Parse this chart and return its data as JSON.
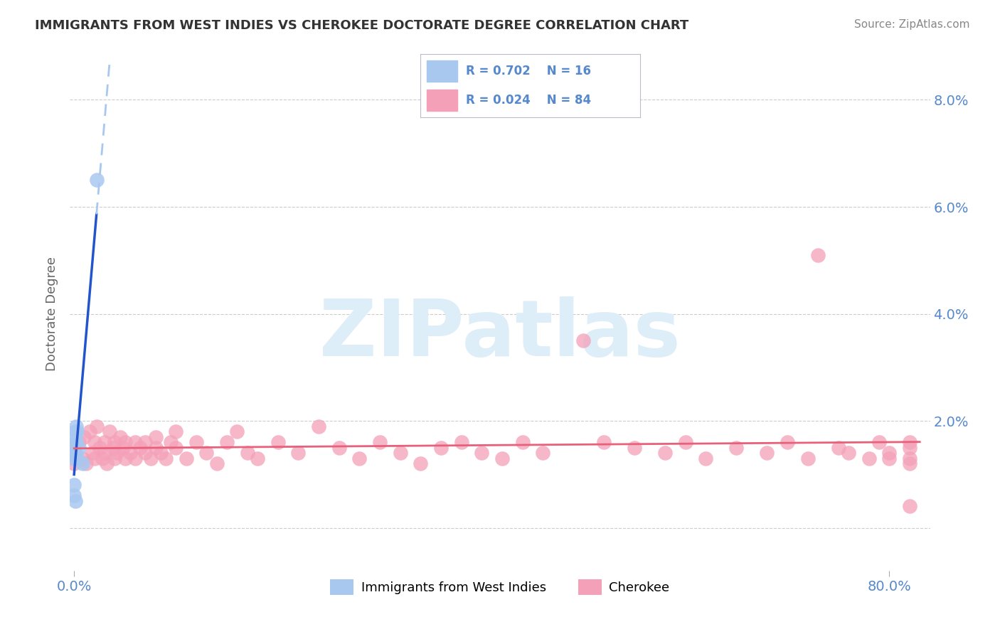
{
  "title": "IMMIGRANTS FROM WEST INDIES VS CHEROKEE DOCTORATE DEGREE CORRELATION CHART",
  "source": "Source: ZipAtlas.com",
  "ylabel": "Doctorate Degree",
  "ytick_vals": [
    0.0,
    0.02,
    0.04,
    0.06,
    0.08
  ],
  "ytick_labels": [
    "",
    "2.0%",
    "4.0%",
    "6.0%",
    "8.0%"
  ],
  "xlim": [
    -0.004,
    0.84
  ],
  "ylim": [
    -0.008,
    0.088
  ],
  "legend_blue_label": "Immigrants from West Indies",
  "legend_pink_label": "Cherokee",
  "blue_color": "#a8c8f0",
  "pink_color": "#f4a0b8",
  "line_blue": "#2255cc",
  "line_pink": "#e8607a",
  "watermark": "ZIPatlas",
  "watermark_color": "#ddeef8",
  "bg_color": "#ffffff",
  "grid_color": "#cccccc",
  "tick_color": "#5588cc",
  "title_color": "#333333",
  "source_color": "#888888",
  "ylabel_color": "#666666",
  "blue_x": [
    0.0,
    0.0,
    0.0,
    0.0,
    0.001,
    0.001,
    0.001,
    0.001,
    0.001,
    0.002,
    0.002,
    0.003,
    0.003,
    0.005,
    0.008,
    0.022
  ],
  "blue_y": [
    0.006,
    0.008,
    0.013,
    0.015,
    0.014,
    0.016,
    0.017,
    0.018,
    0.005,
    0.016,
    0.019,
    0.013,
    0.018,
    0.015,
    0.012,
    0.065
  ],
  "pink_x": [
    0.0,
    0.0,
    0.0,
    0.005,
    0.008,
    0.01,
    0.012,
    0.015,
    0.018,
    0.02,
    0.02,
    0.022,
    0.025,
    0.028,
    0.03,
    0.03,
    0.032,
    0.035,
    0.038,
    0.04,
    0.04,
    0.042,
    0.045,
    0.048,
    0.05,
    0.05,
    0.055,
    0.06,
    0.06,
    0.065,
    0.07,
    0.07,
    0.075,
    0.08,
    0.08,
    0.085,
    0.09,
    0.095,
    0.1,
    0.1,
    0.11,
    0.12,
    0.13,
    0.14,
    0.15,
    0.16,
    0.17,
    0.18,
    0.2,
    0.22,
    0.24,
    0.26,
    0.28,
    0.3,
    0.32,
    0.34,
    0.36,
    0.38,
    0.4,
    0.42,
    0.44,
    0.46,
    0.5,
    0.52,
    0.55,
    0.58,
    0.6,
    0.62,
    0.65,
    0.68,
    0.7,
    0.72,
    0.73,
    0.75,
    0.76,
    0.78,
    0.79,
    0.8,
    0.8,
    0.82,
    0.82,
    0.82,
    0.82,
    0.82
  ],
  "pink_y": [
    0.012,
    0.014,
    0.015,
    0.016,
    0.013,
    0.017,
    0.012,
    0.018,
    0.014,
    0.016,
    0.013,
    0.019,
    0.015,
    0.013,
    0.016,
    0.014,
    0.012,
    0.018,
    0.015,
    0.016,
    0.013,
    0.014,
    0.017,
    0.015,
    0.016,
    0.013,
    0.014,
    0.016,
    0.013,
    0.015,
    0.014,
    0.016,
    0.013,
    0.017,
    0.015,
    0.014,
    0.013,
    0.016,
    0.015,
    0.018,
    0.013,
    0.016,
    0.014,
    0.012,
    0.016,
    0.018,
    0.014,
    0.013,
    0.016,
    0.014,
    0.019,
    0.015,
    0.013,
    0.016,
    0.014,
    0.012,
    0.015,
    0.016,
    0.014,
    0.013,
    0.016,
    0.014,
    0.035,
    0.016,
    0.015,
    0.014,
    0.016,
    0.013,
    0.015,
    0.014,
    0.016,
    0.013,
    0.051,
    0.015,
    0.014,
    0.013,
    0.016,
    0.014,
    0.013,
    0.016,
    0.004,
    0.013,
    0.015,
    0.012
  ]
}
